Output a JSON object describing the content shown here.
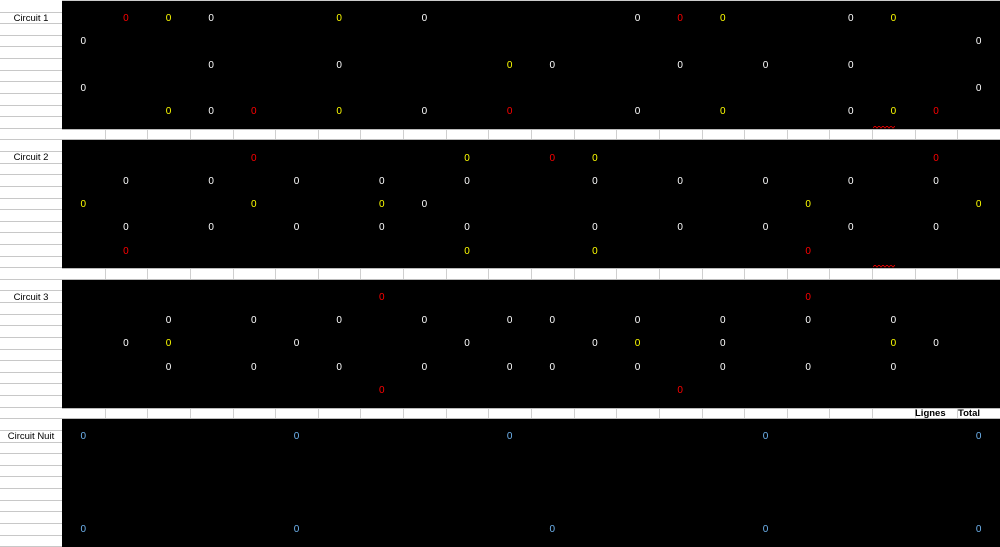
{
  "cell_value": "0",
  "colors": {
    "w": "#ffffff",
    "y": "#ffff00",
    "r": "#ff0000",
    "b": "#6fb4f0"
  },
  "circuits": [
    {
      "label": "Circuit 1",
      "rows": [
        ".ryw..y.w....wry..wy..",
        "w....................w",
        "...w..w...yw..w.w.w...",
        "w....................w",
        "..ywr.y.w.r..w.y..wyr."
      ],
      "squiggle_col": 19
    },
    {
      "label": "Circuit 2",
      "rows": [
        "....r....y.ry.......r.",
        ".w.w.w.w.w..w.w.w.w.w.",
        "y...y..yw........y...y",
        ".w.w.w.w.w..w.w.w.w.w.",
        ".r.......y..y....r...."
      ],
      "squiggle_col": 19
    },
    {
      "label": "Circuit 3",
      "rows": [
        ".......r.........r....",
        "..w.w.w.w.ww.w.w.w.w..",
        ".wy..w...w..wy.w...yw.",
        "..w.w.w.w.ww.w.w.w.w..",
        ".......r......r......."
      ]
    },
    {
      "label": "Circuit Nuit",
      "rows": [
        "b....b....b.....b....b",
        "......................",
        "......................",
        "......................",
        "b....b.....b....b....b"
      ]
    }
  ],
  "headers": {
    "lignes": "Lignes",
    "total": "Total"
  }
}
